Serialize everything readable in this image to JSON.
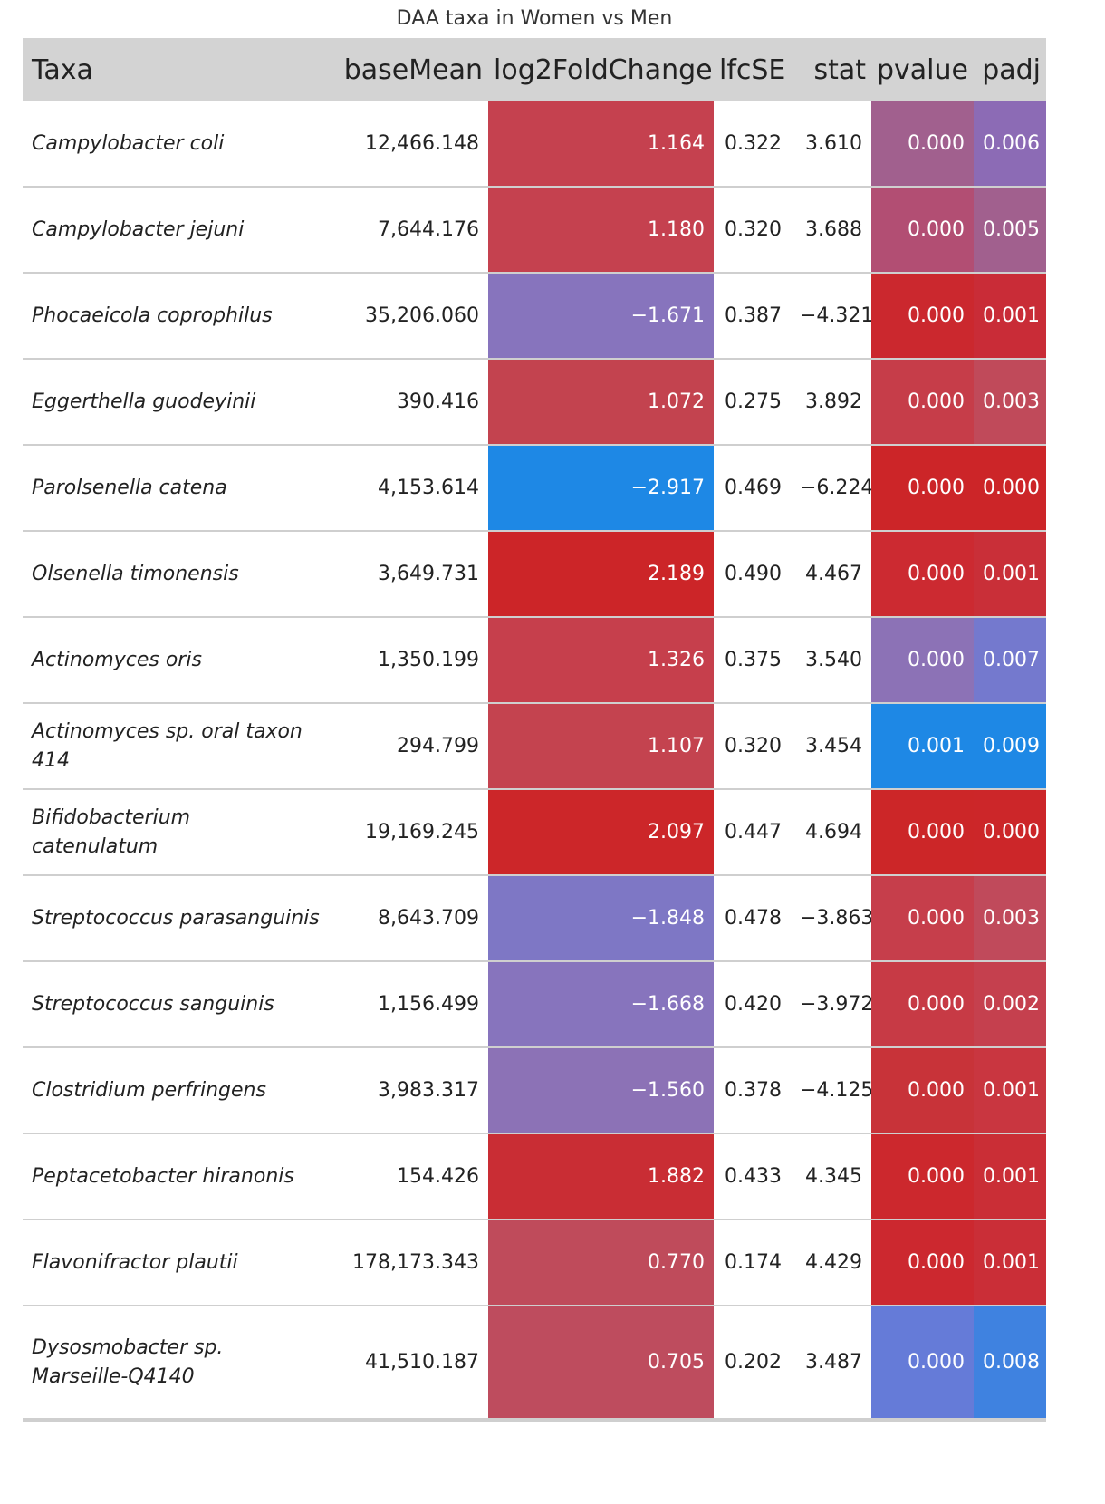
{
  "chart_data": {
    "type": "table",
    "title": "DAA taxa in Women vs Men",
    "columns": [
      "Taxa",
      "baseMean",
      "log2FoldChange",
      "lfcSE",
      "stat",
      "pvalue",
      "padj"
    ],
    "rows": [
      {
        "taxa": "Campylobacter coli",
        "baseMean": "12,466.148",
        "log2FoldChange": "1.164",
        "lfcSE": "0.322",
        "stat": "3.610",
        "pvalue": "0.000",
        "padj": "0.006",
        "colors": {
          "log2FoldChange": "#c5414f",
          "pvalue": "#a1608e",
          "padj": "#8c6bb5"
        }
      },
      {
        "taxa": "Campylobacter jejuni",
        "baseMean": "7,644.176",
        "log2FoldChange": "1.180",
        "lfcSE": "0.320",
        "stat": "3.688",
        "pvalue": "0.000",
        "padj": "0.005",
        "colors": {
          "log2FoldChange": "#c5414f",
          "pvalue": "#b24e73",
          "padj": "#a1608e"
        }
      },
      {
        "taxa": "Phocaeicola coprophilus",
        "baseMean": "35,206.060",
        "log2FoldChange": "−1.671",
        "lfcSE": "0.387",
        "stat": "−4.321",
        "pvalue": "0.000",
        "padj": "0.001",
        "colors": {
          "log2FoldChange": "#8774bd",
          "pvalue": "#cb282e",
          "padj": "#c92c37"
        }
      },
      {
        "taxa": "Eggerthella guodeyinii",
        "baseMean": "390.416",
        "log2FoldChange": "1.072",
        "lfcSE": "0.275",
        "stat": "3.892",
        "pvalue": "0.000",
        "padj": "0.003",
        "colors": {
          "log2FoldChange": "#c3434f",
          "pvalue": "#c63d49",
          "padj": "#c04a5a"
        }
      },
      {
        "taxa": "Parolsenella catena",
        "baseMean": "4,153.614",
        "log2FoldChange": "−2.917",
        "lfcSE": "0.469",
        "stat": "−6.224",
        "pvalue": "0.000",
        "padj": "0.000",
        "colors": {
          "log2FoldChange": "#1e88e5",
          "pvalue": "#cc2528",
          "padj": "#cc2528"
        }
      },
      {
        "taxa": "Olsenella timonensis",
        "baseMean": "3,649.731",
        "log2FoldChange": "2.189",
        "lfcSE": "0.490",
        "stat": "4.467",
        "pvalue": "0.000",
        "padj": "0.001",
        "colors": {
          "log2FoldChange": "#cc2528",
          "pvalue": "#cc2a31",
          "padj": "#c92f38"
        }
      },
      {
        "taxa": "Actinomyces oris",
        "baseMean": "1,350.199",
        "log2FoldChange": "1.326",
        "lfcSE": "0.375",
        "stat": "3.540",
        "pvalue": "0.000",
        "padj": "0.007",
        "colors": {
          "log2FoldChange": "#c63f4c",
          "pvalue": "#8c72b6",
          "padj": "#7479ce"
        }
      },
      {
        "taxa": "Actinomyces sp. oral taxon 414",
        "baseMean": "294.799",
        "log2FoldChange": "1.107",
        "lfcSE": "0.320",
        "stat": "3.454",
        "pvalue": "0.001",
        "padj": "0.009",
        "colors": {
          "log2FoldChange": "#c4434f",
          "pvalue": "#1e88e5",
          "padj": "#1e88e5"
        }
      },
      {
        "taxa": "Bifidobacterium catenulatum",
        "baseMean": "19,169.245",
        "log2FoldChange": "2.097",
        "lfcSE": "0.447",
        "stat": "4.694",
        "pvalue": "0.000",
        "padj": "0.000",
        "colors": {
          "log2FoldChange": "#cc2629",
          "pvalue": "#cc2628",
          "padj": "#cc2629"
        }
      },
      {
        "taxa": "Streptococcus parasanguinis",
        "baseMean": "8,643.709",
        "log2FoldChange": "−1.848",
        "lfcSE": "0.478",
        "stat": "−3.863",
        "pvalue": "0.000",
        "padj": "0.003",
        "colors": {
          "log2FoldChange": "#7e77c5",
          "pvalue": "#c63e4b",
          "padj": "#c04a5b"
        }
      },
      {
        "taxa": "Streptococcus sanguinis",
        "baseMean": "1,156.499",
        "log2FoldChange": "−1.668",
        "lfcSE": "0.420",
        "stat": "−3.972",
        "pvalue": "0.000",
        "padj": "0.002",
        "colors": {
          "log2FoldChange": "#8774bd",
          "pvalue": "#c73a45",
          "padj": "#c5404e"
        }
      },
      {
        "taxa": "Clostridium perfringens",
        "baseMean": "3,983.317",
        "log2FoldChange": "−1.560",
        "lfcSE": "0.378",
        "stat": "−4.125",
        "pvalue": "0.000",
        "padj": "0.001",
        "colors": {
          "log2FoldChange": "#8c72b6",
          "pvalue": "#c83339",
          "padj": "#c93640"
        }
      },
      {
        "taxa": "Peptacetobacter hiranonis",
        "baseMean": "154.426",
        "log2FoldChange": "1.882",
        "lfcSE": "0.433",
        "stat": "4.345",
        "pvalue": "0.000",
        "padj": "0.001",
        "colors": {
          "log2FoldChange": "#c92d34",
          "pvalue": "#cc282d",
          "padj": "#ca2e36"
        }
      },
      {
        "taxa": "Flavonifractor plautii",
        "baseMean": "178,173.343",
        "log2FoldChange": "0.770",
        "lfcSE": "0.174",
        "stat": "4.429",
        "pvalue": "0.000",
        "padj": "0.001",
        "colors": {
          "log2FoldChange": "#bf4b5b",
          "pvalue": "#cc282f",
          "padj": "#ca2e37"
        }
      },
      {
        "taxa": "Dysosmobacter sp. Marseille-Q4140",
        "baseMean": "41,510.187",
        "log2FoldChange": "0.705",
        "lfcSE": "0.202",
        "stat": "3.487",
        "pvalue": "0.000",
        "padj": "0.008",
        "colors": {
          "log2FoldChange": "#be4c5e",
          "pvalue": "#657bd8",
          "padj": "#3f82e0"
        }
      }
    ]
  }
}
